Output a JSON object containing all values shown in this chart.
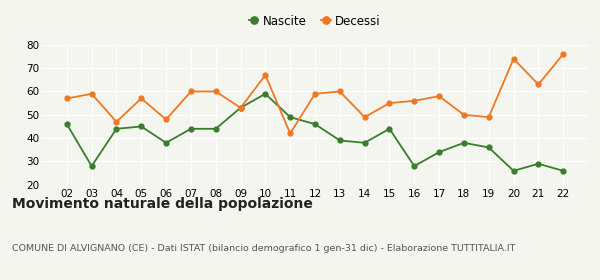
{
  "years": [
    "02",
    "03",
    "04",
    "05",
    "06",
    "07",
    "08",
    "09",
    "10",
    "11",
    "12",
    "13",
    "14",
    "15",
    "16",
    "17",
    "18",
    "19",
    "20",
    "21",
    "22"
  ],
  "nascite": [
    46,
    28,
    44,
    45,
    38,
    44,
    44,
    53,
    59,
    49,
    46,
    39,
    38,
    44,
    28,
    34,
    38,
    36,
    26,
    29,
    26
  ],
  "decessi": [
    57,
    59,
    47,
    57,
    48,
    60,
    60,
    53,
    67,
    42,
    59,
    60,
    49,
    55,
    56,
    58,
    50,
    49,
    74,
    63,
    76
  ],
  "nascite_color": "#3a7d2c",
  "decessi_color": "#f07820",
  "title": "Movimento naturale della popolazione",
  "subtitle": "COMUNE DI ALVIGNANO (CE) - Dati ISTAT (bilancio demografico 1 gen-31 dic) - Elaborazione TUTTITALIA.IT",
  "legend_nascite": "Nascite",
  "legend_decessi": "Decessi",
  "ylim": [
    20,
    80
  ],
  "yticks": [
    20,
    30,
    40,
    50,
    60,
    70,
    80
  ],
  "bg_color": "#f5f5f0",
  "title_fontsize": 10,
  "subtitle_fontsize": 6.8
}
